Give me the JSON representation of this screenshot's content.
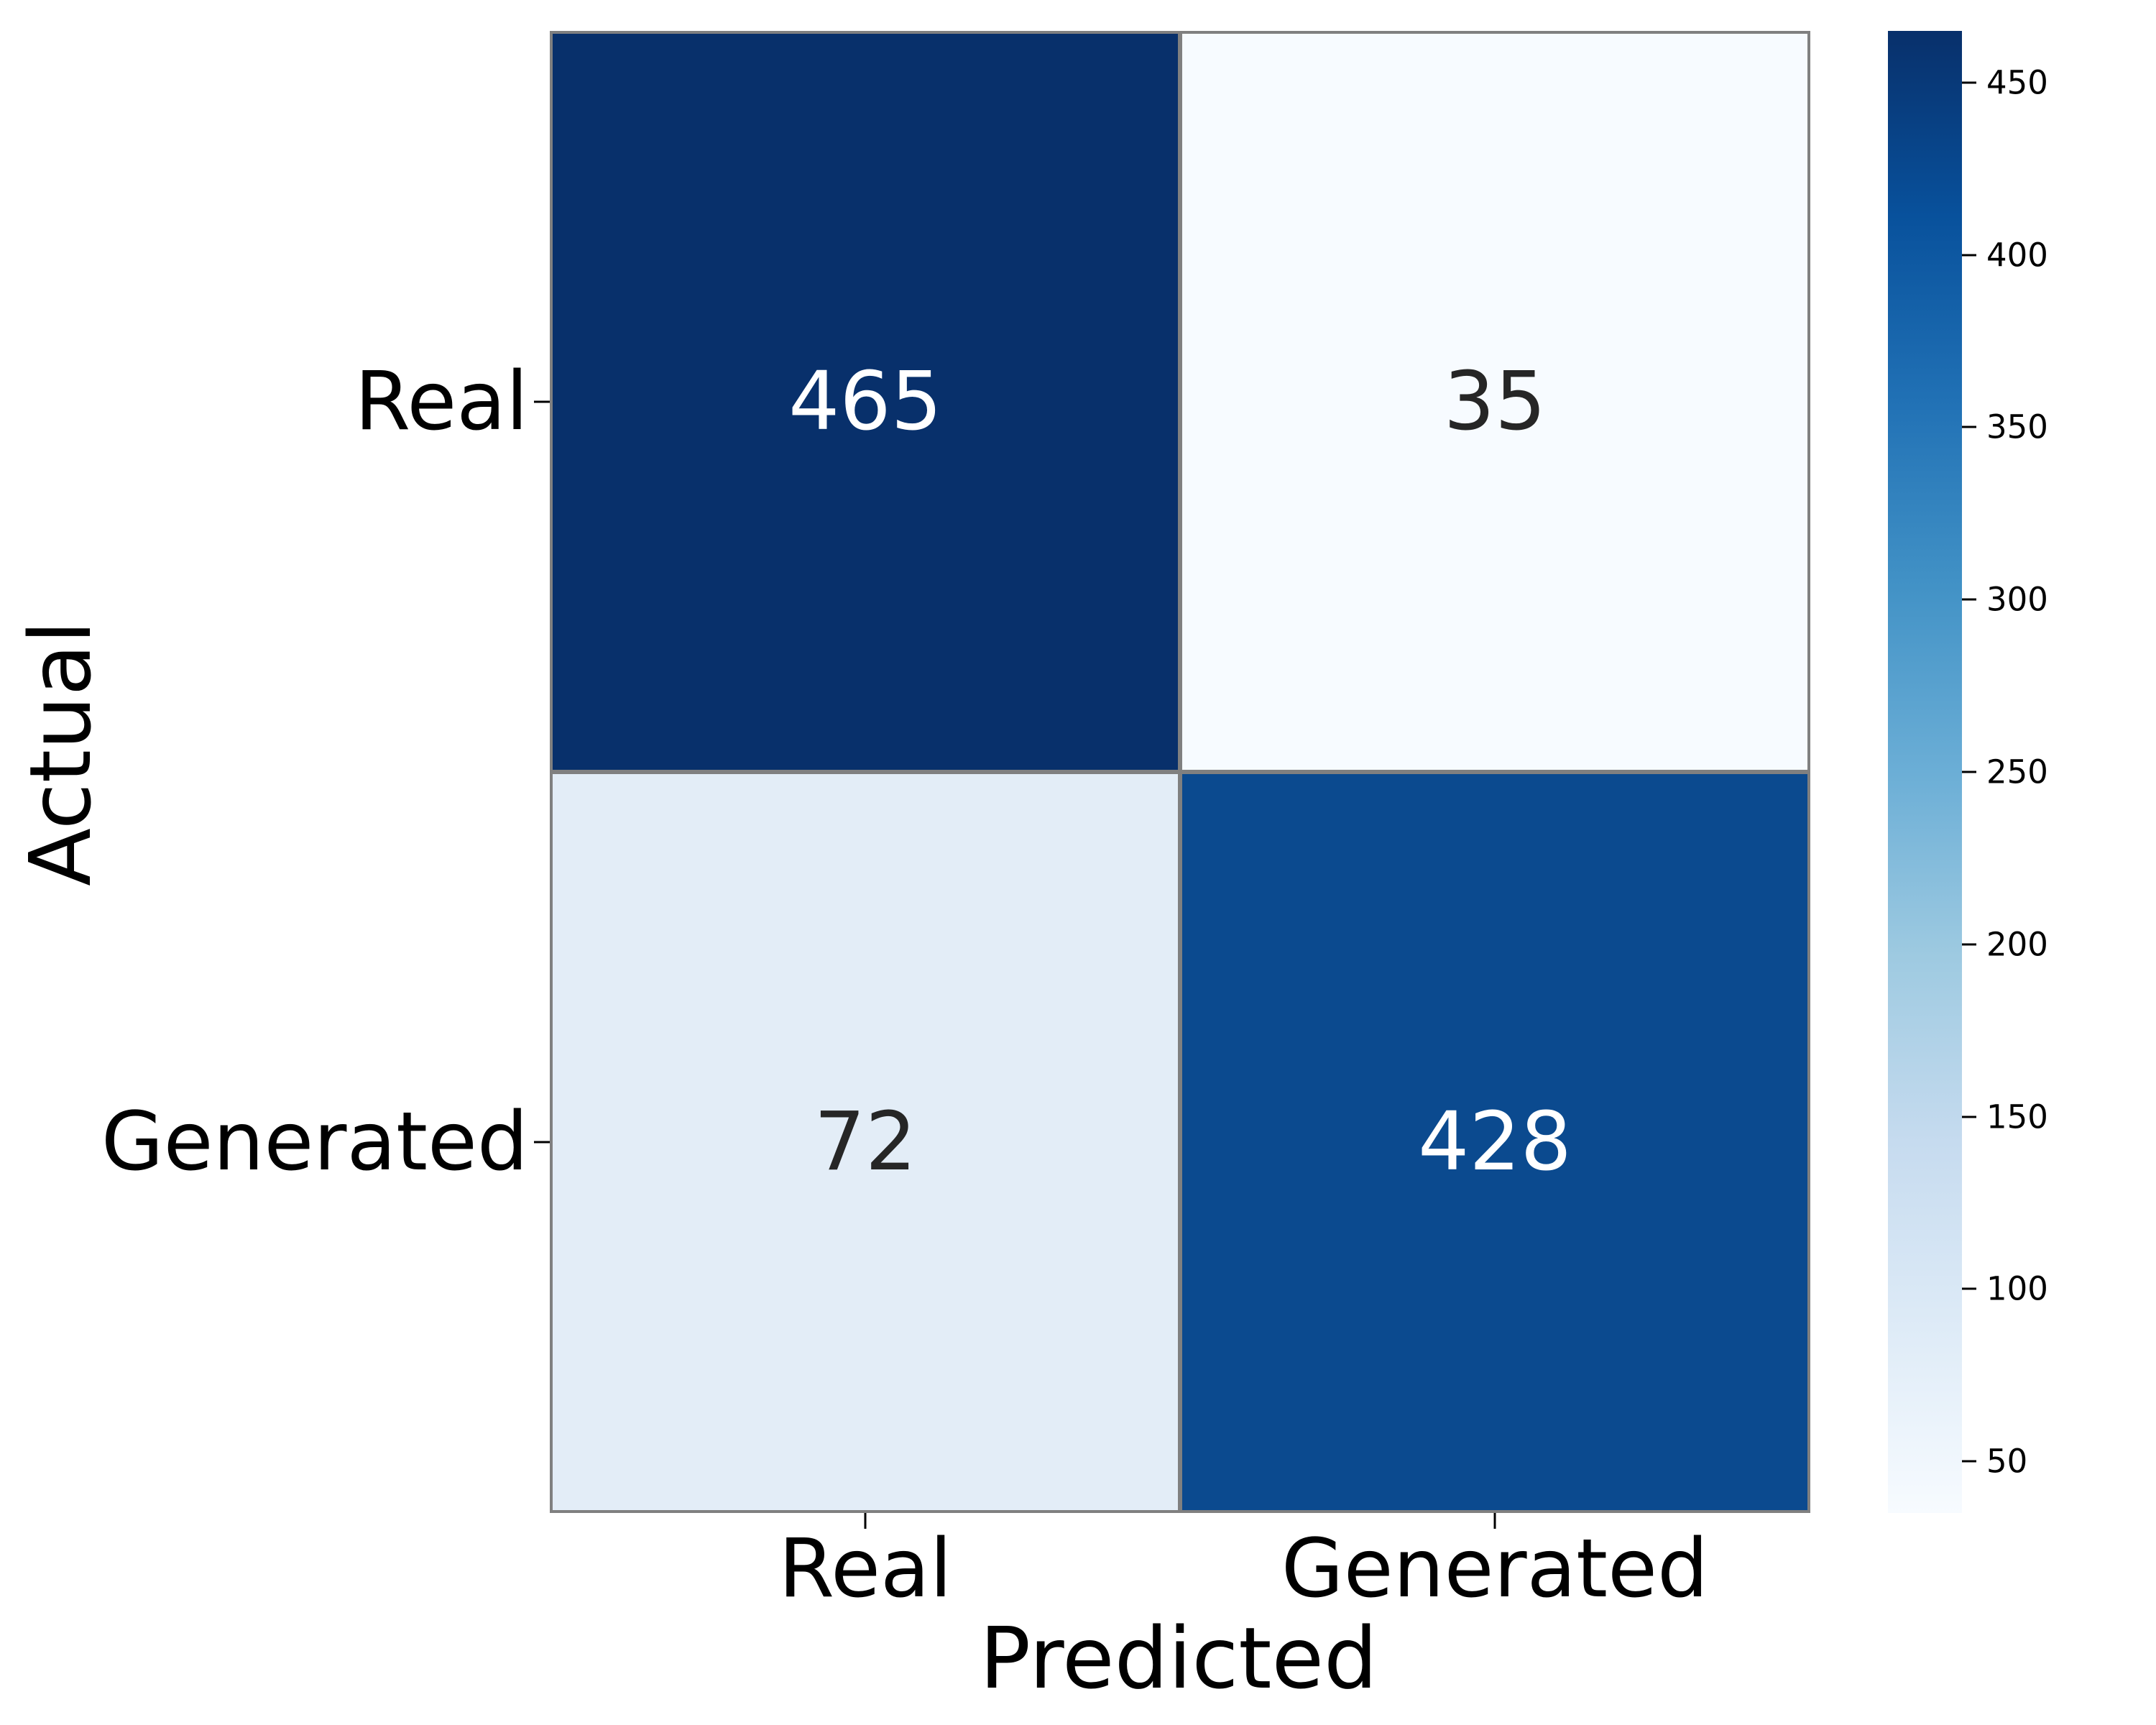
{
  "figure": {
    "background": "#ffffff",
    "grid_line_color": "#808080"
  },
  "chart_data": {
    "type": "heatmap",
    "title": "",
    "xlabel": "Predicted",
    "ylabel": "Actual",
    "x_categories": [
      "Real",
      "Generated"
    ],
    "y_categories": [
      "Real",
      "Generated"
    ],
    "values": [
      [
        465,
        35
      ],
      [
        72,
        428
      ]
    ],
    "cell_colors": [
      [
        "#08306b",
        "#f7fbff"
      ],
      [
        "#e3edf7",
        "#0b4a8f"
      ]
    ],
    "cell_text_colors": [
      [
        "#ffffff",
        "#262626"
      ],
      [
        "#262626",
        "#ffffff"
      ]
    ],
    "colormap": "Blues",
    "vmin": 35,
    "vmax": 465,
    "legend_position": "right",
    "grid": true,
    "colorbar": {
      "ticks": [
        450,
        400,
        350,
        300,
        250,
        200,
        150,
        100,
        50
      ],
      "gradient_stops_bottom_to_top": [
        "#f7fbff",
        "#deebf7",
        "#c6dbef",
        "#9ecae1",
        "#6baed6",
        "#4292c6",
        "#2171b5",
        "#08519c",
        "#08306b"
      ]
    }
  }
}
